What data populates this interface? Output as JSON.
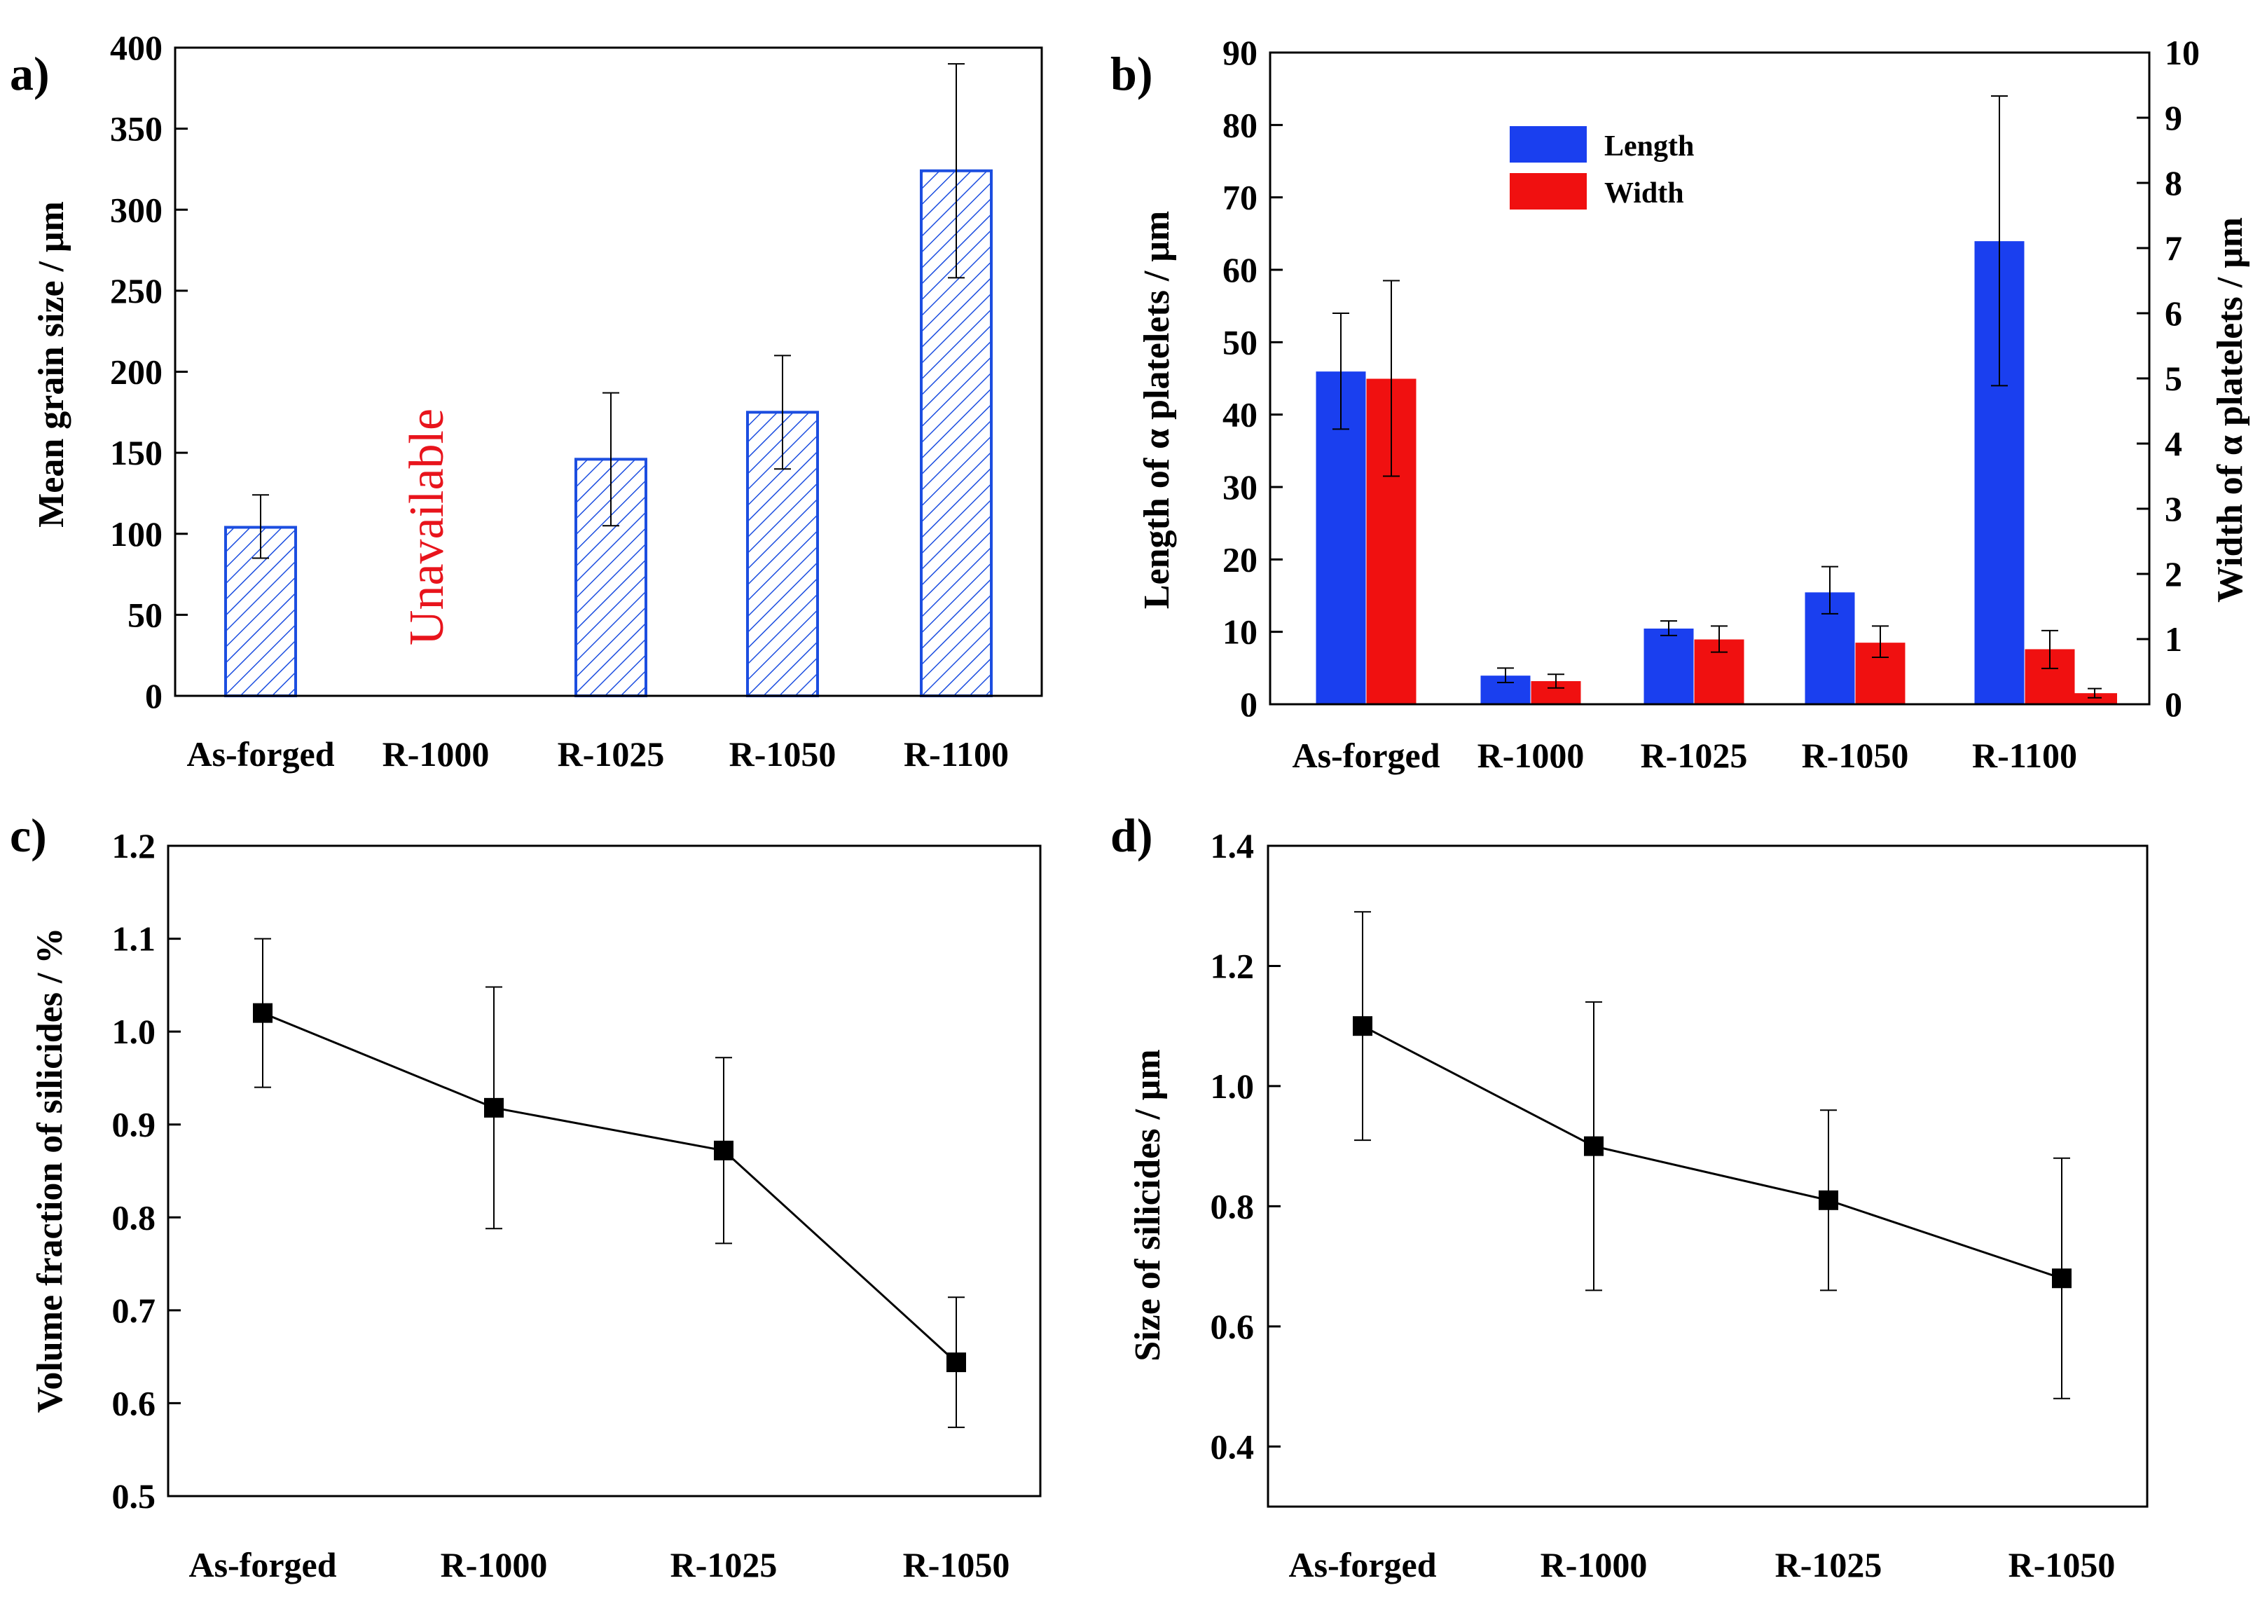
{
  "colors": {
    "hatch_blue": "#1c4ee0",
    "length_blue": "#1a3fef",
    "width_red": "#f01010",
    "unavailable_red": "#e8141c",
    "line_black": "#000000"
  },
  "chart_data": [
    {
      "id": "a",
      "panel_label": "a)",
      "type": "bar",
      "pattern": "hatched",
      "categories": [
        "As-forged",
        "R-1000",
        "R-1025",
        "R-1050",
        "R-1100"
      ],
      "values": [
        104,
        null,
        146,
        175,
        324
      ],
      "errors": [
        [
          85,
          124
        ],
        null,
        [
          105,
          187
        ],
        [
          140,
          210
        ],
        [
          258,
          390
        ]
      ],
      "annotation": {
        "category": "R-1000",
        "text": "Unavailable"
      },
      "ylabel": "Mean grain size / μm",
      "ylim": [
        0,
        400
      ],
      "yticks": [
        0,
        50,
        100,
        150,
        200,
        250,
        300,
        350,
        400
      ]
    },
    {
      "id": "b",
      "panel_label": "b)",
      "type": "bar",
      "dual_axis": true,
      "categories": [
        "As-forged",
        "R-1000",
        "R-1025",
        "R-1050",
        "R-1100"
      ],
      "series": [
        {
          "name": "Length",
          "axis": "left",
          "values": [
            46,
            4,
            10.5,
            15.5,
            64
          ],
          "errors": [
            [
              38,
              54
            ],
            [
              3,
              5
            ],
            [
              9.5,
              11.5
            ],
            [
              12.5,
              19
            ],
            [
              44,
              84
            ]
          ]
        },
        {
          "name": "Width",
          "axis": "right",
          "values": [
            5.0,
            0.36,
            1.0,
            0.95,
            0.85
          ],
          "errors": [
            [
              3.5,
              6.5
            ],
            [
              0.25,
              0.46
            ],
            [
              0.8,
              1.2
            ],
            [
              0.72,
              1.2
            ],
            [
              0.55,
              1.13
            ]
          ]
        }
      ],
      "extra_bar": {
        "series": "Width",
        "category": "R-1100",
        "value": 0.17,
        "error": [
          0.1,
          0.24
        ]
      },
      "ylabel": "Length of α platelets / μm",
      "y2label": "Width of α platelets / μm",
      "ylim": [
        0,
        90
      ],
      "yticks": [
        0,
        10,
        20,
        30,
        40,
        50,
        60,
        70,
        80,
        90
      ],
      "y2lim": [
        0,
        10
      ],
      "y2ticks": [
        0,
        1,
        2,
        3,
        4,
        5,
        6,
        7,
        8,
        9,
        10
      ],
      "legend": [
        "Length",
        "Width"
      ],
      "legend_position": "top-center"
    },
    {
      "id": "c",
      "panel_label": "c)",
      "type": "line",
      "marker": "square",
      "categories": [
        "As-forged",
        "R-1000",
        "R-1025",
        "R-1050"
      ],
      "values": [
        1.02,
        0.918,
        0.872,
        0.644
      ],
      "errors": [
        [
          0.94,
          1.1
        ],
        [
          0.788,
          1.048
        ],
        [
          0.772,
          0.972
        ],
        [
          0.574,
          0.714
        ]
      ],
      "ylabel": "Volume fraction of silicides / %",
      "ylim": [
        0.5,
        1.2
      ],
      "yticks": [
        "0.5",
        "0.6",
        "0.7",
        "0.8",
        "0.9",
        "1.0",
        "1.1",
        "1.2"
      ]
    },
    {
      "id": "d",
      "panel_label": "d)",
      "type": "line",
      "marker": "square",
      "categories": [
        "As-forged",
        "R-1000",
        "R-1025",
        "R-1050"
      ],
      "values": [
        1.1,
        0.9,
        0.81,
        0.68
      ],
      "errors": [
        [
          0.91,
          1.29
        ],
        [
          0.66,
          1.14
        ],
        [
          0.66,
          0.96
        ],
        [
          0.48,
          0.88
        ]
      ],
      "ylabel": "Size of silicides / μm",
      "ylim": [
        0.3,
        1.4
      ],
      "yticks": [
        "0.4",
        "0.6",
        "0.8",
        "1.0",
        "1.2",
        "1.4"
      ]
    }
  ]
}
